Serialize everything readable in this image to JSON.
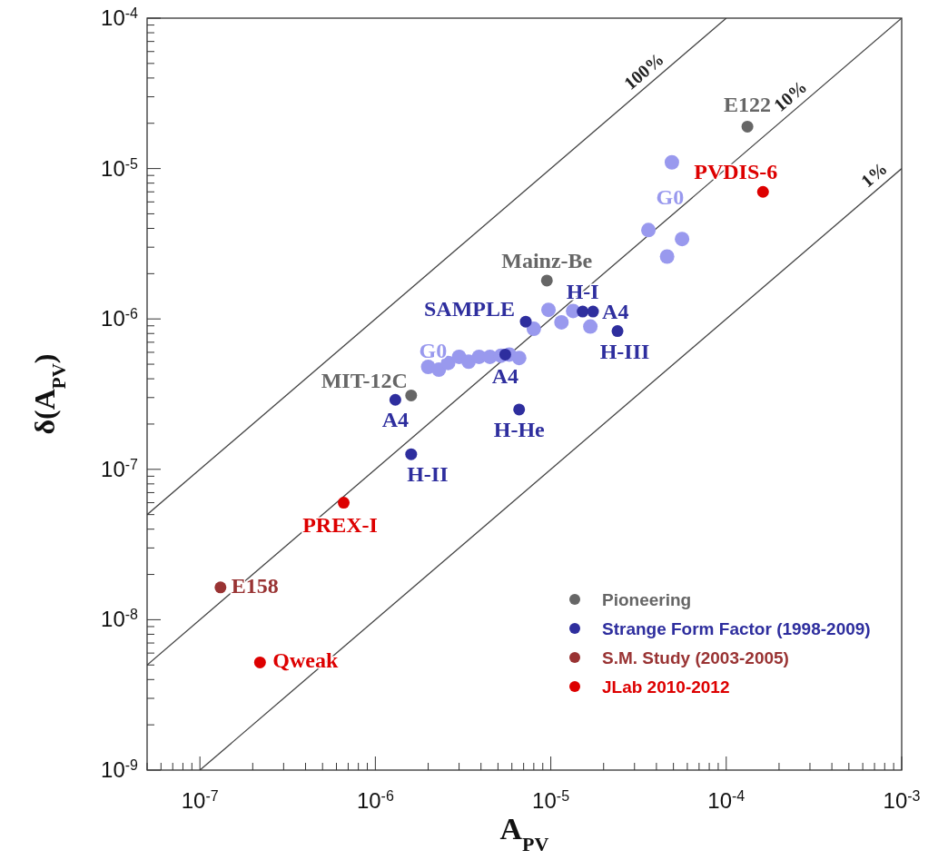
{
  "chart_data": {
    "type": "scatter",
    "xlabel": "A$_{PV}$",
    "ylabel": "δ(A$_{PV}$)",
    "log": "xy",
    "grid": false,
    "legend": "bottom right",
    "marker": "circle",
    "xlim": [
      5e-08,
      0.001
    ],
    "ylim": [
      1e-09,
      0.0001
    ],
    "xticks": [
      {
        "value": 1e-07,
        "label": "10$^{-7}$"
      },
      {
        "value": 1e-06,
        "label": "10$^{-6}$"
      },
      {
        "value": 1e-05,
        "label": "10$^{-5}$"
      },
      {
        "value": 0.0001,
        "label": "10$^{-4}$"
      },
      {
        "value": 0.001,
        "label": "10$^{-3}$"
      }
    ],
    "yticks": [
      {
        "value": 1e-09,
        "label": "10$^{-9}$"
      },
      {
        "value": 1e-08,
        "label": "10$^{-8}$"
      },
      {
        "value": 1e-07,
        "label": "10$^{-7}$"
      },
      {
        "value": 1e-06,
        "label": "10$^{-6}$"
      },
      {
        "value": 1e-05,
        "label": "10$^{-5}$"
      },
      {
        "value": 0.0001,
        "label": "10$^{-4}$"
      }
    ],
    "series": [
      {
        "type": "line",
        "color": "#444444",
        "line_style": "solid",
        "marker": "none",
        "x": [
          5e-08,
          0.0001
        ],
        "values": [
          5e-08,
          0.0001
        ]
      },
      {
        "type": "line",
        "color": "#444444",
        "line_style": "solid",
        "marker": "none",
        "x": [
          5e-08,
          0.001
        ],
        "values": [
          5e-09,
          0.0001
        ]
      },
      {
        "type": "line",
        "color": "#444444",
        "line_style": "solid",
        "marker": "none",
        "x": [
          1e-07,
          0.001
        ],
        "values": [
          1e-09,
          1e-05
        ]
      },
      {
        "color": "#9999ee",
        "x": [
          4.9e-05,
          3.6e-05,
          5.6e-05,
          4.6e-05,
          9.7e-06,
          1.15e-05,
          1.68e-05,
          1.34e-05,
          8e-06,
          2e-06,
          2.3e-06,
          2.6e-06,
          3e-06,
          3.4e-06,
          3.9e-06,
          4.5e-06,
          5.2e-06,
          5.8e-06,
          6.6e-06
        ],
        "values": [
          1.1e-05,
          3.9e-06,
          3.4e-06,
          2.6e-06,
          1.15e-06,
          9.5e-07,
          8.9e-07,
          1.13e-06,
          8.6e-07,
          4.8e-07,
          4.6e-07,
          5.1e-07,
          5.6e-07,
          5.2e-07,
          5.6e-07,
          5.6e-07,
          5.7e-07,
          5.8e-07,
          5.5e-07
        ]
      },
      {
        "name": "Pioneering",
        "color": "#666666",
        "x": [
          0.000132,
          9.5e-06,
          1.6e-06
        ],
        "values": [
          1.9e-05,
          1.8e-06,
          3.1e-07
        ]
      },
      {
        "name": "Strange Form Factor (1998-2009)",
        "color": "#2e2e9e",
        "x": [
          1.3e-06,
          1.6e-06,
          6.6e-06,
          5.5e-06,
          7.2e-06,
          1.52e-05,
          1.74e-05,
          2.4e-05
        ],
        "values": [
          2.9e-07,
          1.26e-07,
          2.5e-07,
          5.8e-07,
          9.6e-07,
          1.12e-06,
          1.12e-06,
          8.3e-07
        ]
      },
      {
        "name": "S.M. Study (2003-2005)",
        "color": "#993333",
        "x": [
          1.31e-07
        ],
        "values": [
          1.64e-08
        ]
      },
      {
        "name": "JLab 2010-2012",
        "color": "#dd0000",
        "x": [
          6.6e-07,
          2.2e-07,
          0.000162
        ],
        "values": [
          6e-08,
          5.2e-09,
          7e-06
        ]
      }
    ],
    "annotations": [
      {
        "text": "E122",
        "x": 0.000132,
        "y": 1.9e-05
      },
      {
        "text": "Mainz-Be",
        "x": 9.5e-06,
        "y": 1.8e-06
      },
      {
        "text": "MIT-12C",
        "x": 1.6e-06,
        "y": 3.1e-07
      },
      {
        "text": "A4",
        "x": 1.3e-06,
        "y": 2.9e-07
      },
      {
        "text": "H-II",
        "x": 1.6e-06,
        "y": 1.26e-07
      },
      {
        "text": "H-He",
        "x": 6.6e-06,
        "y": 2.5e-07
      },
      {
        "text": "A4",
        "x": 5.5e-06,
        "y": 5.8e-07
      },
      {
        "text": "SAMPLE",
        "x": 7.2e-06,
        "y": 9.6e-07
      },
      {
        "text": "H-I",
        "x": 1.52e-05,
        "y": 1.12e-06
      },
      {
        "text": "A4",
        "x": 1.74e-05,
        "y": 1.12e-06
      },
      {
        "text": "H-III",
        "x": 2.4e-05,
        "y": 8.3e-07
      },
      {
        "text": "G0",
        "x": 4.9e-05,
        "y": 1.1e-05
      },
      {
        "text": "G0",
        "x": 2e-06,
        "y": 4.8e-07
      },
      {
        "text": "E158",
        "x": 1.31e-07,
        "y": 1.64e-08
      },
      {
        "text": "PREX-I",
        "x": 6.6e-07,
        "y": 6e-08
      },
      {
        "text": "Qweak",
        "x": 2.2e-07,
        "y": 5.2e-09
      },
      {
        "text": "PVDIS-6",
        "x": 0.000162,
        "y": 7e-06
      },
      {
        "text": "100%",
        "x": 3.8e-05,
        "y": 3.8e-05
      },
      {
        "text": "10%",
        "x": 0.00026,
        "y": 2.6e-05
      },
      {
        "text": "1%",
        "x": 0.00078,
        "y": 7.8e-06
      }
    ]
  }
}
